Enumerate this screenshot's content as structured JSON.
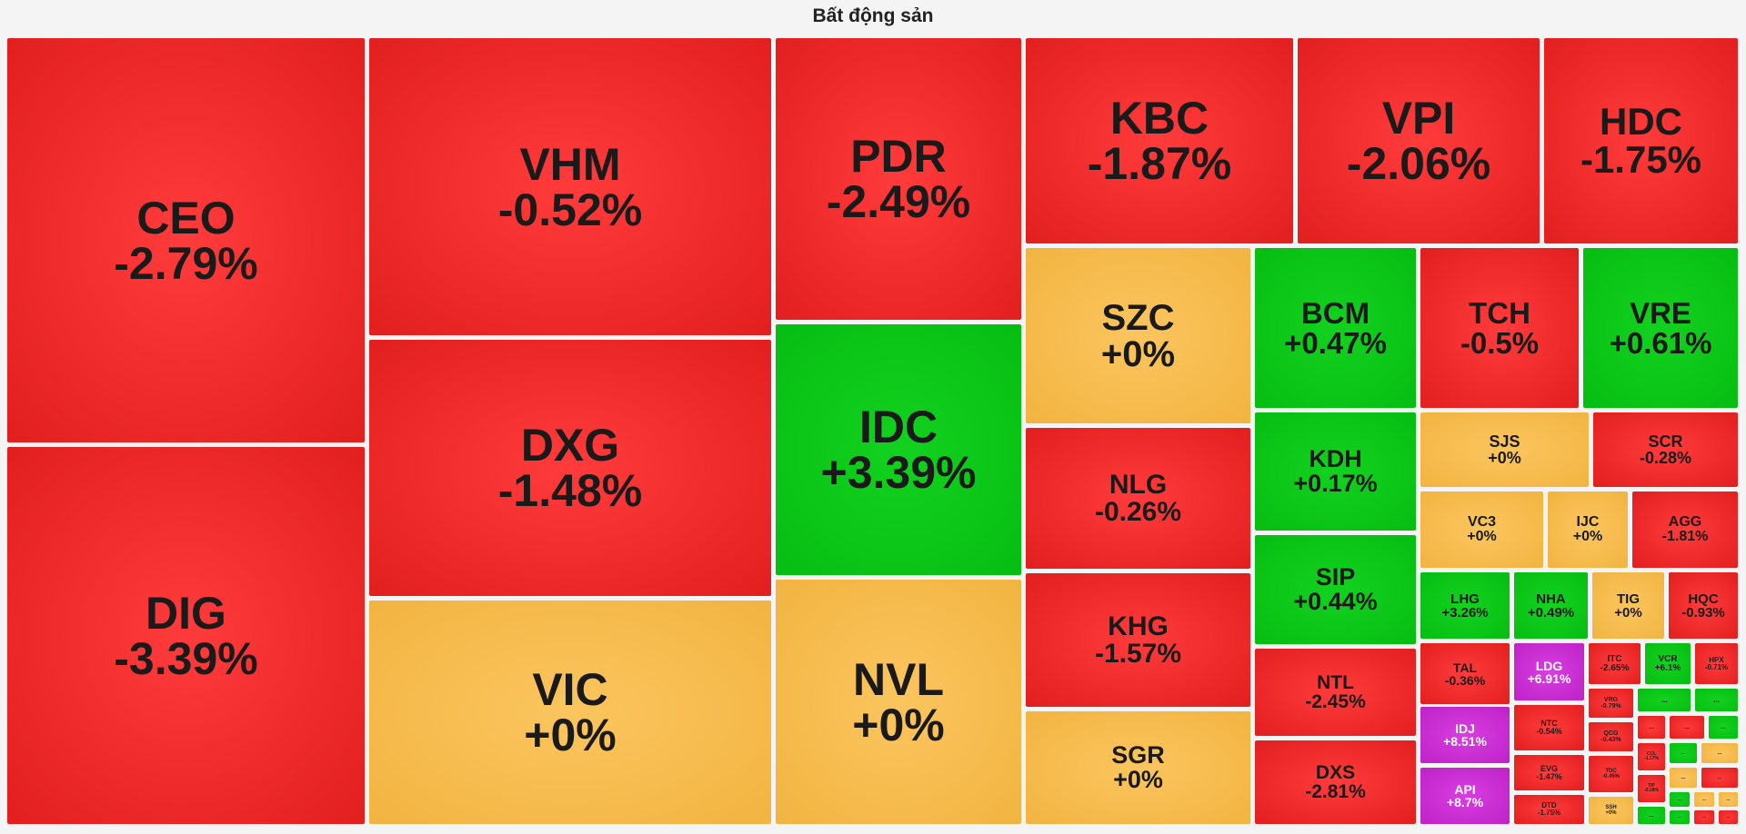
{
  "title": "Bất động sản",
  "colors": {
    "down": "#e82424",
    "flat": "#f5bb4b",
    "up": "#0bc617",
    "ceiling": "#c92fd2"
  },
  "chart_data": {
    "type": "treemap",
    "title": "Bất động sản",
    "tiles": [
      {
        "symbol": "CEO",
        "change": "-2.79%",
        "value": -2.79
      },
      {
        "symbol": "DIG",
        "change": "-3.39%",
        "value": -3.39
      },
      {
        "symbol": "VHM",
        "change": "-0.52%",
        "value": -0.52
      },
      {
        "symbol": "DXG",
        "change": "-1.48%",
        "value": -1.48
      },
      {
        "symbol": "VIC",
        "change": "+0%",
        "value": 0
      },
      {
        "symbol": "PDR",
        "change": "-2.49%",
        "value": -2.49
      },
      {
        "symbol": "IDC",
        "change": "+3.39%",
        "value": 3.39
      },
      {
        "symbol": "NVL",
        "change": "+0%",
        "value": 0
      },
      {
        "symbol": "KBC",
        "change": "-1.87%",
        "value": -1.87
      },
      {
        "symbol": "VPI",
        "change": "-2.06%",
        "value": -2.06
      },
      {
        "symbol": "HDC",
        "change": "-1.75%",
        "value": -1.75
      },
      {
        "symbol": "SZC",
        "change": "+0%",
        "value": 0
      },
      {
        "symbol": "NLG",
        "change": "-0.26%",
        "value": -0.26
      },
      {
        "symbol": "KHG",
        "change": "-1.57%",
        "value": -1.57
      },
      {
        "symbol": "SGR",
        "change": "+0%",
        "value": 0
      },
      {
        "symbol": "BCM",
        "change": "+0.47%",
        "value": 0.47
      },
      {
        "symbol": "KDH",
        "change": "+0.17%",
        "value": 0.17
      },
      {
        "symbol": "SIP",
        "change": "+0.44%",
        "value": 0.44
      },
      {
        "symbol": "NTL",
        "change": "-2.45%",
        "value": -2.45
      },
      {
        "symbol": "DXS",
        "change": "-2.81%",
        "value": -2.81
      },
      {
        "symbol": "TCH",
        "change": "-0.5%",
        "value": -0.5
      },
      {
        "symbol": "VRE",
        "change": "+0.61%",
        "value": 0.61
      },
      {
        "symbol": "SJS",
        "change": "+0%",
        "value": 0
      },
      {
        "symbol": "SCR",
        "change": "-0.28%",
        "value": -0.28
      },
      {
        "symbol": "VC3",
        "change": "+0%",
        "value": 0
      },
      {
        "symbol": "IJC",
        "change": "+0%",
        "value": 0
      },
      {
        "symbol": "AGG",
        "change": "-1.81%",
        "value": -1.81
      },
      {
        "symbol": "LHG",
        "change": "+3.26%",
        "value": 3.26
      },
      {
        "symbol": "NHA",
        "change": "+0.49%",
        "value": 0.49
      },
      {
        "symbol": "TIG",
        "change": "+0%",
        "value": 0
      },
      {
        "symbol": "HQC",
        "change": "-0.93%",
        "value": -0.93
      },
      {
        "symbol": "TAL",
        "change": "-0.36%",
        "value": -0.36
      },
      {
        "symbol": "LDG",
        "change": "+6.91%",
        "value": 6.91
      },
      {
        "symbol": "IDJ",
        "change": "+8.51%",
        "value": 8.51
      },
      {
        "symbol": "API",
        "change": "+8.7%",
        "value": 8.7
      },
      {
        "symbol": "ITC",
        "change": "-2.65%",
        "value": -2.65
      },
      {
        "symbol": "VCR",
        "change": "+6.1%",
        "value": 6.1
      },
      {
        "symbol": "HPX",
        "change": "-0.71%",
        "value": -0.71
      },
      {
        "symbol": "NTC",
        "change": "-0.54%",
        "value": -0.54
      },
      {
        "symbol": "EVG",
        "change": "-1.47%",
        "value": -1.47
      },
      {
        "symbol": "DTD",
        "change": "-1.75%",
        "value": -1.75
      },
      {
        "symbol": "VRG",
        "change": "-0.79%",
        "value": -0.79
      },
      {
        "symbol": "QCG",
        "change": "-0.43%",
        "value": -0.43
      },
      {
        "symbol": "TDC",
        "change": "-0.45%",
        "value": -0.45
      },
      {
        "symbol": "SSH",
        "change": "+0%",
        "value": 0
      },
      {
        "symbol": "CCL",
        "change": "-1.17%",
        "value": -1.17
      },
      {
        "symbol": "TIP",
        "change": "-0.28%",
        "value": -0.28
      }
    ],
    "collapsed_tiles": [
      {
        "label": "...",
        "status": "up"
      },
      {
        "label": "...",
        "status": "down"
      },
      {
        "label": "...",
        "status": "down"
      },
      {
        "label": "...",
        "status": "up"
      },
      {
        "label": "...",
        "status": "up"
      },
      {
        "label": "...",
        "status": "up"
      },
      {
        "label": "...",
        "status": "flat"
      },
      {
        "label": "...",
        "status": "flat"
      },
      {
        "label": "...",
        "status": "down"
      },
      {
        "label": "...",
        "status": "up"
      },
      {
        "label": "...",
        "status": "up"
      },
      {
        "label": "...",
        "status": "flat"
      },
      {
        "label": "...",
        "status": "flat"
      },
      {
        "label": "...",
        "status": "up"
      },
      {
        "label": "...",
        "status": "down"
      },
      {
        "label": "...",
        "status": "down"
      },
      {
        "label": "...",
        "status": "up"
      },
      {
        "label": "...",
        "status": "down"
      }
    ]
  }
}
